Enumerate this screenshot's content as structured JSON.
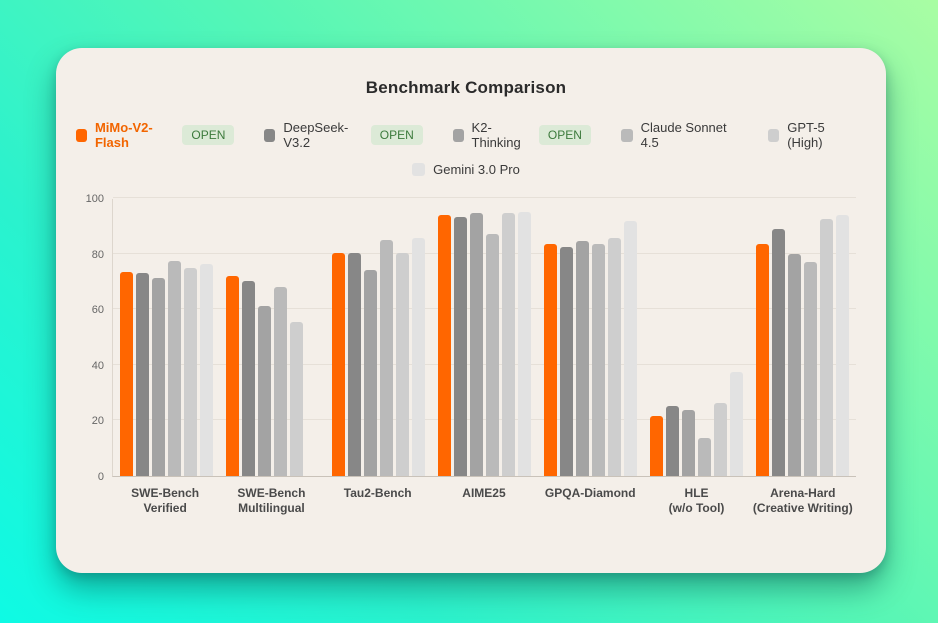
{
  "page": {
    "title": "Benchmark Comparison"
  },
  "legend": {
    "open_badge_label": "OPEN",
    "rows": [
      [
        0,
        1,
        2,
        3,
        4
      ],
      [
        5
      ]
    ]
  },
  "colors": {
    "accent_orange": "#ff6600",
    "accent_text": "#f26500",
    "open_badge_bg": "#dcead7",
    "open_badge_text": "#3c7a3c",
    "card_bg": "#f4efe9",
    "gridline": "#e6e0d8",
    "bg_gradient_start": "#a9fda3",
    "bg_gradient_end": "#0efae4"
  },
  "chart_data": {
    "type": "bar",
    "title": "Benchmark Comparison",
    "categories": [
      "SWE-Bench\nVerified",
      "SWE-Bench\nMultilingual",
      "Tau2-Bench",
      "AIME25",
      "GPQA-Diamond",
      "HLE\n(w/o Tool)",
      "Arena-Hard\n(Creative Writing)"
    ],
    "series": [
      {
        "name": "MiMo-V2-Flash",
        "color": "#ff6600",
        "open": true,
        "values": [
          73.4,
          71.8,
          80.2,
          93.9,
          83.5,
          21.6,
          83.3
        ]
      },
      {
        "name": "DeepSeek-V3.2",
        "color": "#878787",
        "open": true,
        "values": [
          73.0,
          70.0,
          80.2,
          93.1,
          82.3,
          25.0,
          88.7
        ]
      },
      {
        "name": "K2-Thinking",
        "color": "#a3a3a3",
        "open": true,
        "values": [
          71.3,
          61.1,
          74.2,
          94.5,
          84.5,
          23.9,
          80.0
        ]
      },
      {
        "name": "Claude Sonnet 4.5",
        "color": "#bababa",
        "open": false,
        "values": [
          77.2,
          68.0,
          84.8,
          87.0,
          83.4,
          13.7,
          76.8
        ]
      },
      {
        "name": "GPT-5 (High)",
        "color": "#cecece",
        "open": false,
        "values": [
          74.9,
          55.3,
          80.2,
          94.6,
          85.7,
          26.3,
          92.3
        ]
      },
      {
        "name": "Gemini 3.0 Pro",
        "color": "#e2e2e2",
        "open": false,
        "values": [
          76.2,
          null,
          85.5,
          95.0,
          91.9,
          37.5,
          93.9
        ]
      }
    ],
    "ylabel": "",
    "xlabel": "",
    "ylim": [
      0,
      100
    ],
    "yticks": [
      0,
      20,
      40,
      60,
      80,
      100
    ],
    "grid": true,
    "legend_position": "top"
  }
}
